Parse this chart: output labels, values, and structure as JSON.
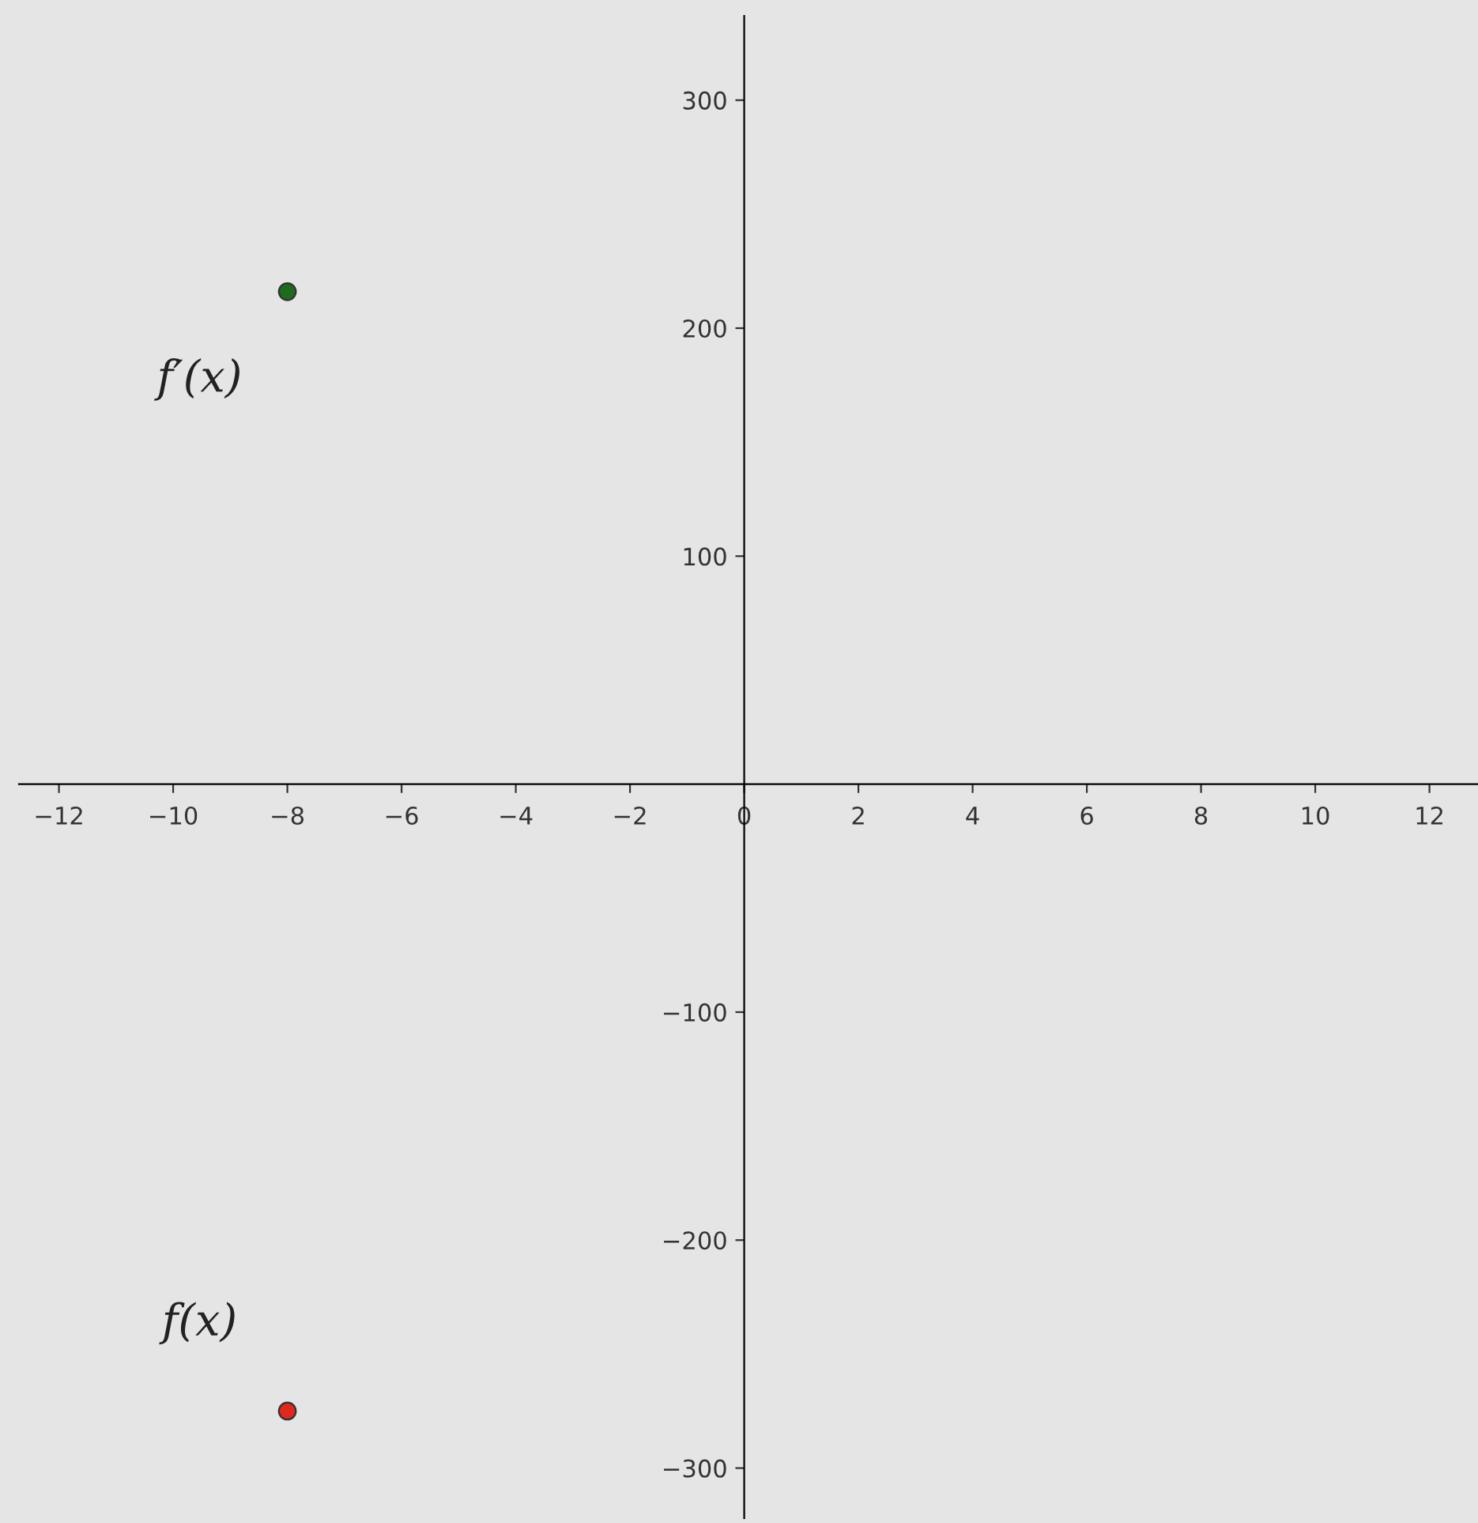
{
  "chart_data": {
    "type": "scatter",
    "xlim": [
      -12.7,
      12.85
    ],
    "ylim": [
      -322,
      337
    ],
    "xticks": [
      {
        "value": -12,
        "label": "−12"
      },
      {
        "value": -10,
        "label": "−10"
      },
      {
        "value": -8,
        "label": "−8"
      },
      {
        "value": -6,
        "label": "−6"
      },
      {
        "value": -4,
        "label": "−4"
      },
      {
        "value": -2,
        "label": "−2"
      },
      0,
      2,
      4,
      6,
      8,
      10,
      12
    ],
    "yticks": [
      {
        "value": -300,
        "label": "−300"
      },
      {
        "value": -200,
        "label": "−200"
      },
      {
        "value": -100,
        "label": "−100"
      },
      100,
      200,
      300
    ],
    "series": [
      {
        "name": "f′(x)",
        "color": "#1e6b1e",
        "x": [
          -8
        ],
        "values": [
          216
        ]
      },
      {
        "name": "f(x)",
        "color": "#e0281e",
        "x": [
          -8
        ],
        "values": [
          -275
        ]
      }
    ],
    "grid": false,
    "marker": "circle"
  }
}
